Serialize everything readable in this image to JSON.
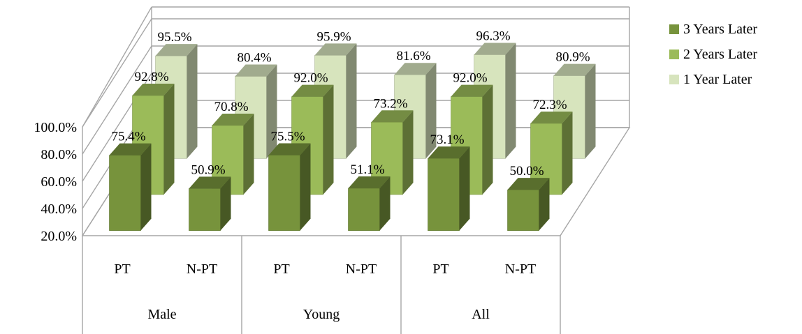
{
  "chart_data": {
    "type": "bar",
    "three_d": true,
    "title": "",
    "xlabel": "",
    "ylabel": "",
    "ylim": [
      20,
      100
    ],
    "y_ticks": [
      "100.0%",
      "80.0%",
      "60.0%",
      "40.0%",
      "20.0%"
    ],
    "y_tick_values": [
      100,
      80,
      60,
      40,
      20
    ],
    "groups": [
      "Male",
      "Young",
      "All"
    ],
    "subcategories": [
      "PT",
      "N-PT",
      "PT",
      "N-PT",
      "PT",
      "N-PT"
    ],
    "series": [
      {
        "name": "3 Years Later",
        "color": "#77933c",
        "values": [
          75.4,
          50.9,
          75.5,
          51.1,
          73.1,
          50.0
        ],
        "labels": [
          "75.4%",
          "50.9%",
          "75.5%",
          "51.1%",
          "73.1%",
          "50.0%"
        ]
      },
      {
        "name": "2 Years Later",
        "color": "#9bbb59",
        "values": [
          92.8,
          70.8,
          92.0,
          73.2,
          92.0,
          72.3
        ],
        "labels": [
          "92.8%",
          "70.8%",
          "92.0%",
          "73.2%",
          "92.0%",
          "72.3%"
        ]
      },
      {
        "name": "1 Year Later",
        "color": "#d7e4bd",
        "values": [
          95.5,
          80.4,
          95.9,
          81.6,
          96.3,
          80.9
        ],
        "labels": [
          "95.5%",
          "80.4%",
          "95.9%",
          "81.6%",
          "96.3%",
          "80.9%"
        ]
      }
    ],
    "grid": true,
    "legend_position": "right"
  }
}
